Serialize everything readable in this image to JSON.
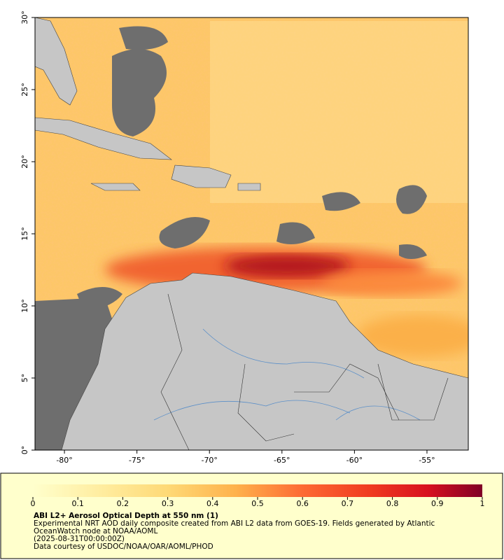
{
  "map": {
    "xlim": [
      -82.03,
      -52.15
    ],
    "ylim": [
      0,
      30
    ],
    "xticks": [
      {
        "value": -80,
        "label": "-80°"
      },
      {
        "value": -75,
        "label": "-75°"
      },
      {
        "value": -70,
        "label": "-70°"
      },
      {
        "value": -65,
        "label": "-65°"
      },
      {
        "value": -60,
        "label": "-60°"
      },
      {
        "value": -55,
        "label": "-55°"
      }
    ],
    "yticks": [
      {
        "value": 0,
        "label": "0°"
      },
      {
        "value": 5,
        "label": "5°"
      },
      {
        "value": 10,
        "label": "10°"
      },
      {
        "value": 15,
        "label": "15°"
      },
      {
        "value": 20,
        "label": "20°"
      },
      {
        "value": 25,
        "label": "25°"
      },
      {
        "value": 30,
        "label": "30°"
      }
    ]
  },
  "colorbar": {
    "lim": [
      0,
      1
    ],
    "ticks": [
      0,
      0.1,
      0.2,
      0.3,
      0.4,
      0.5,
      0.6,
      0.7,
      0.8,
      0.9,
      1
    ]
  },
  "caption": {
    "title": "ABI L2+ Aerosol Optical Depth at 550 nm (1)",
    "description": "Experimental NRT AOD daily composite created from ABI L2 data from GOES-19. Fields generated by Atlantic OceanWatch node at NOAA/AOML",
    "date": "(2025-08-31T00:00:00Z)",
    "credit": "Data courtesy of USDOC/NOAA/OAR/AOML/PHOD"
  }
}
